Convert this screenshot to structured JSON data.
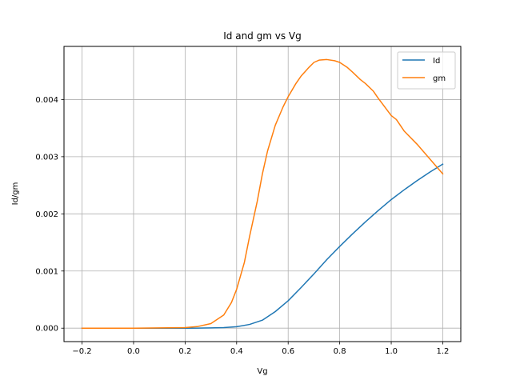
{
  "chart_data": {
    "type": "line",
    "title": "Id and gm vs Vg",
    "xlabel": "Vg",
    "ylabel": "Id/gm",
    "xlim": [
      -0.27,
      1.27
    ],
    "ylim": [
      -0.000235,
      0.00493
    ],
    "xticks": [
      -0.2,
      0.0,
      0.2,
      0.4,
      0.6,
      0.8,
      1.0,
      1.2
    ],
    "xtick_labels": [
      "−0.2",
      "0.0",
      "0.2",
      "0.4",
      "0.6",
      "0.8",
      "1.0",
      "1.2"
    ],
    "yticks": [
      0.0,
      0.001,
      0.002,
      0.003,
      0.004
    ],
    "ytick_labels": [
      "0.000",
      "0.001",
      "0.002",
      "0.003",
      "0.004"
    ],
    "grid": true,
    "legend_position": "top-right",
    "series": [
      {
        "name": "Id",
        "color": "#1f77b4",
        "x": [
          -0.2,
          0.0,
          0.2,
          0.25,
          0.3,
          0.35,
          0.4,
          0.45,
          0.5,
          0.55,
          0.6,
          0.65,
          0.7,
          0.75,
          0.8,
          0.85,
          0.9,
          0.95,
          1.0,
          1.05,
          1.1,
          1.15,
          1.2
        ],
        "y": [
          0.0,
          0.0,
          0.0,
          2e-06,
          5e-06,
          1e-05,
          2.5e-05,
          6.5e-05,
          0.00014,
          0.00029,
          0.00048,
          0.00071,
          0.00095,
          0.0012,
          0.00143,
          0.00165,
          0.00186,
          0.00206,
          0.00225,
          0.00242,
          0.00258,
          0.00273,
          0.00287
        ]
      },
      {
        "name": "gm",
        "color": "#ff7f0e",
        "x": [
          -0.2,
          0.0,
          0.2,
          0.25,
          0.3,
          0.35,
          0.38,
          0.4,
          0.43,
          0.45,
          0.48,
          0.5,
          0.52,
          0.55,
          0.58,
          0.6,
          0.63,
          0.65,
          0.68,
          0.7,
          0.72,
          0.75,
          0.78,
          0.8,
          0.83,
          0.85,
          0.88,
          0.9,
          0.93,
          0.95,
          1.0,
          1.02,
          1.05,
          1.1,
          1.15,
          1.2
        ],
        "y": [
          0.0,
          0.0,
          1e-05,
          3e-05,
          8e-05,
          0.00023,
          0.00045,
          0.00068,
          0.00115,
          0.0016,
          0.00222,
          0.0027,
          0.0031,
          0.00355,
          0.00387,
          0.00405,
          0.00428,
          0.00441,
          0.00456,
          0.00465,
          0.00469,
          0.0047,
          0.00468,
          0.00465,
          0.00456,
          0.00448,
          0.00435,
          0.00428,
          0.00415,
          0.00402,
          0.00372,
          0.00365,
          0.00345,
          0.00322,
          0.00296,
          0.0027
        ]
      }
    ]
  }
}
